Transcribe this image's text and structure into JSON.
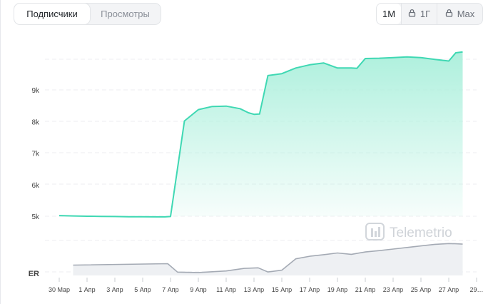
{
  "tabs": {
    "subscribers": "Подписчики",
    "views": "Просмотры"
  },
  "range": {
    "m1": "1М",
    "y1": "1Г",
    "max": "Max"
  },
  "watermark": "Telemetrio",
  "colors": {
    "main_line": "#3fd8b3",
    "main_fill": "#b7f1e1",
    "er_line": "#a4aab4",
    "er_fill": "#eef0f3"
  },
  "chart_data": [
    {
      "type": "area",
      "ylim": [
        4700,
        10400
      ],
      "yticks": [
        5000,
        6000,
        7000,
        8000,
        9000
      ],
      "ytick_labels": [
        "5k",
        "6k",
        "7k",
        "8k",
        "9k"
      ],
      "grid": true,
      "x_labels": [
        "30 Мар",
        "1 Апр",
        "3 Апр",
        "5 Апр",
        "7 Апр",
        "9 Апр",
        "11 Апр",
        "13 Апр",
        "15 Апр",
        "17 Апр",
        "19 Апр",
        "21 Апр",
        "23 Апр",
        "25 Апр",
        "27 Апр",
        "29…"
      ],
      "x": [
        0,
        1,
        2,
        3,
        4,
        5,
        6,
        7,
        7.3,
        7.6,
        8,
        9,
        10,
        11,
        12,
        13,
        13.6,
        14,
        14.4,
        15,
        16,
        17,
        18,
        19,
        20,
        21,
        21.4,
        22,
        23,
        24,
        25,
        26,
        27,
        28,
        28.5,
        29
      ],
      "values": [
        5020,
        5010,
        5000,
        4995,
        4990,
        4985,
        4982,
        4980,
        4980,
        4980,
        4990,
        8020,
        8380,
        8480,
        8490,
        8410,
        8280,
        8230,
        8240,
        9460,
        9520,
        9700,
        9800,
        9860,
        9700,
        9700,
        9690,
        10000,
        10010,
        10030,
        10050,
        10030,
        9970,
        9920,
        10180,
        10210
      ]
    },
    {
      "type": "area",
      "ylabel": "ER",
      "x": [
        1,
        7.8,
        8.5,
        10,
        12,
        13.3,
        14.3,
        15,
        16,
        17,
        18,
        19,
        20,
        21,
        22,
        23,
        24,
        25,
        26,
        27,
        28,
        28.5,
        29
      ],
      "values": [
        0.38,
        0.45,
        0.02,
        0.0,
        0.08,
        0.21,
        0.24,
        0.03,
        0.12,
        0.7,
        0.83,
        0.91,
        1.0,
        0.93,
        1.05,
        1.12,
        1.2,
        1.28,
        1.36,
        1.44,
        1.48,
        1.47,
        1.45
      ],
      "ylim": [
        -0.15,
        1.6
      ]
    }
  ]
}
